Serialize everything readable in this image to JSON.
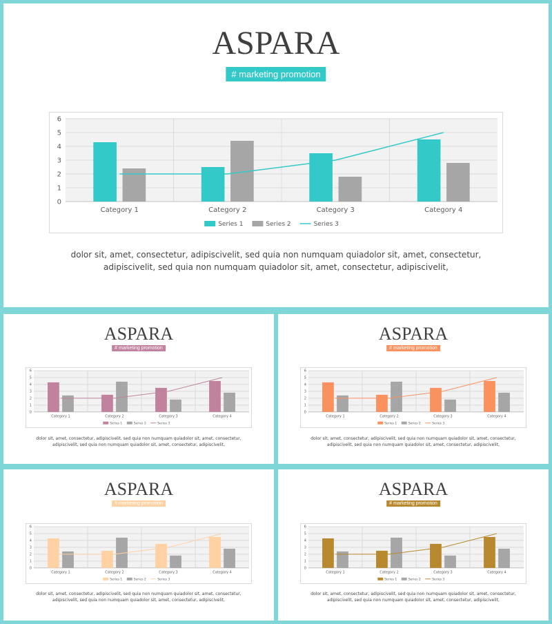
{
  "slides": [
    {
      "id": "main",
      "title": "ASPARA",
      "tag": "# marketing promotion",
      "accent": "#33c9c9",
      "text_lines": [
        "dolor sit, amet, consectetur, adipiscivelit, sed quia non numquam quiadolor sit, amet, consectetur,",
        "adipiscivelit, sed quia non numquam quiadolor sit, amet, consectetur, adipiscivelit,"
      ]
    },
    {
      "id": "pink",
      "title": "ASPARA",
      "tag": "# marketing promotion",
      "accent": "#c0829e",
      "text_lines": [
        "dolor sit, amet, consectetur, adipiscivelit, sed quia non numquam quiadolor sit, amet, consectetur,",
        "adipiscivelit, sed quia non numquam quiadolor sit, amet, consectetur, adipiscivelit,"
      ]
    },
    {
      "id": "orange",
      "title": "ASPARA",
      "tag": "# marketing promotion",
      "accent": "#f9925f",
      "text_lines": [
        "dolor sit, amet, consectetur, adipiscivelit, sed quia non numquam quiadolor sit, amet, consectetur,",
        "adipiscivelit, sed quia non numquam quiadolor sit, amet, consectetur, adipiscivelit,"
      ]
    },
    {
      "id": "peach",
      "title": "ASPARA",
      "tag": "# marketing promotion",
      "accent": "#ffd1a3",
      "text_lines": [
        "dolor sit, amet, consectetur, adipiscivelit, sed quia non numquam quiadolor sit, amet, consectetur,",
        "adipiscivelit, sed quia non numquam quiadolor sit, amet, consectetur, adipiscivelit,"
      ]
    },
    {
      "id": "gold",
      "title": "ASPARA",
      "tag": "# marketing promotion",
      "accent": "#b8882e",
      "text_lines": [
        "dolor sit, amet, consectetur, adipiscivelit, sed quia non numquam quiadolor sit, amet, consectetur,",
        "adipiscivelit, sed quia non numquam quiadolor sit, amet, consectetur, adipiscivelit,"
      ]
    }
  ],
  "chart_data": {
    "type": "bar",
    "categories": [
      "Category 1",
      "Category 2",
      "Category 3",
      "Category 4"
    ],
    "series": [
      {
        "name": "Series 1",
        "kind": "bar",
        "values": [
          4.3,
          2.5,
          3.5,
          4.5
        ]
      },
      {
        "name": "Series 2",
        "kind": "bar",
        "values": [
          2.4,
          4.4,
          1.8,
          2.8
        ],
        "color": "#a6a6a6"
      },
      {
        "name": "Series 3",
        "kind": "line",
        "values": [
          2,
          2,
          3,
          5
        ]
      }
    ],
    "ylim": [
      0,
      6
    ],
    "yticks": [
      0,
      1,
      2,
      3,
      4,
      5,
      6
    ],
    "grid": true,
    "legend": "bottom"
  }
}
